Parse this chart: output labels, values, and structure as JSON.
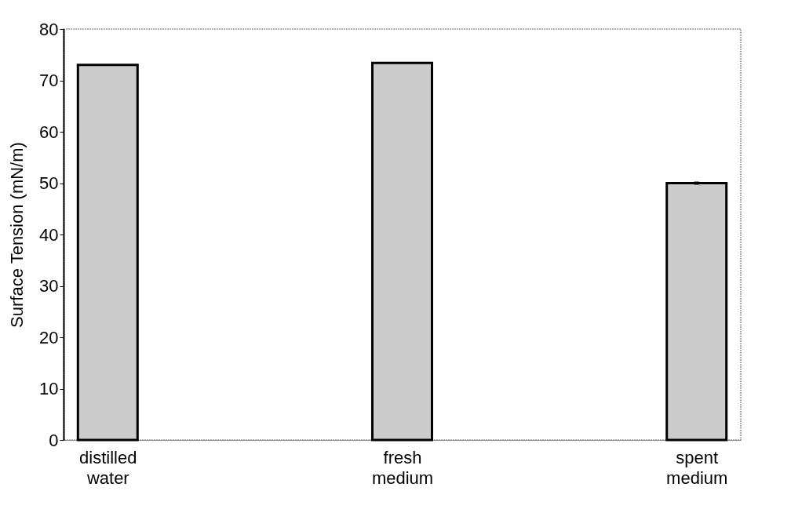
{
  "chart_data": {
    "type": "bar",
    "ylabel": "Surface Tension (mN/m)",
    "categories": [
      "distilled water",
      "fresh medium",
      "spent medium"
    ],
    "values": [
      73.0,
      73.4,
      50.0
    ],
    "errors": [
      null,
      null,
      0.3
    ],
    "color": "#cccccc",
    "ylim": [
      0,
      80
    ],
    "yticks": [
      0,
      10,
      20,
      30,
      40,
      50,
      60,
      70,
      80
    ],
    "grid": false
  }
}
